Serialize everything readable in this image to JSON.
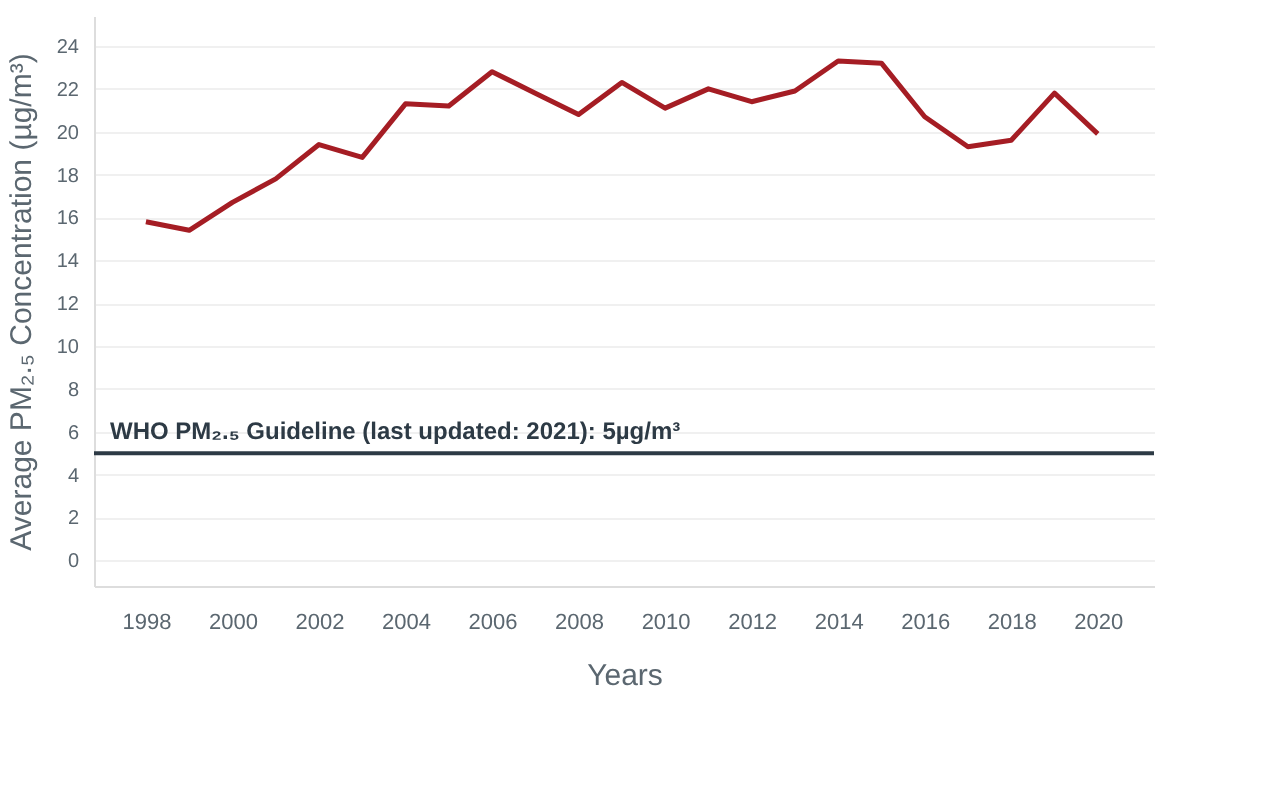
{
  "chart_data": {
    "type": "line",
    "xlabel": "Years",
    "ylabel": "Average PM₂.₅ Concentration (µg/m³)",
    "x": [
      1998,
      1999,
      2000,
      2001,
      2002,
      2003,
      2004,
      2005,
      2006,
      2007,
      2008,
      2009,
      2010,
      2011,
      2012,
      2013,
      2014,
      2015,
      2016,
      2017,
      2018,
      2019,
      2020
    ],
    "series": [
      {
        "color": "#a51d24",
        "values": [
          15.8,
          15.4,
          16.7,
          17.8,
          19.4,
          18.8,
          21.3,
          21.2,
          22.8,
          21.8,
          20.8,
          22.3,
          21.1,
          22.0,
          21.4,
          21.9,
          23.3,
          23.2,
          20.7,
          19.3,
          19.6,
          21.8,
          19.9
        ]
      }
    ],
    "xlim": [
      1996.8,
      2021.3
    ],
    "xticks": [
      1998,
      2000,
      2002,
      2004,
      2006,
      2008,
      2010,
      2012,
      2014,
      2016,
      2018,
      2020
    ],
    "ylim": [
      -1.2,
      25.4
    ],
    "yticks": [
      0,
      2,
      4,
      6,
      8,
      10,
      12,
      14,
      16,
      18,
      20,
      22,
      24
    ],
    "grid": "y",
    "marker": "none",
    "line_style": "solid",
    "ref_lines": [
      {
        "axis": "y",
        "value": 5,
        "label": "WHO PM₂.₅ Guideline (last updated: 2021): 5µg/m³",
        "color": "#2d3a45"
      }
    ]
  }
}
